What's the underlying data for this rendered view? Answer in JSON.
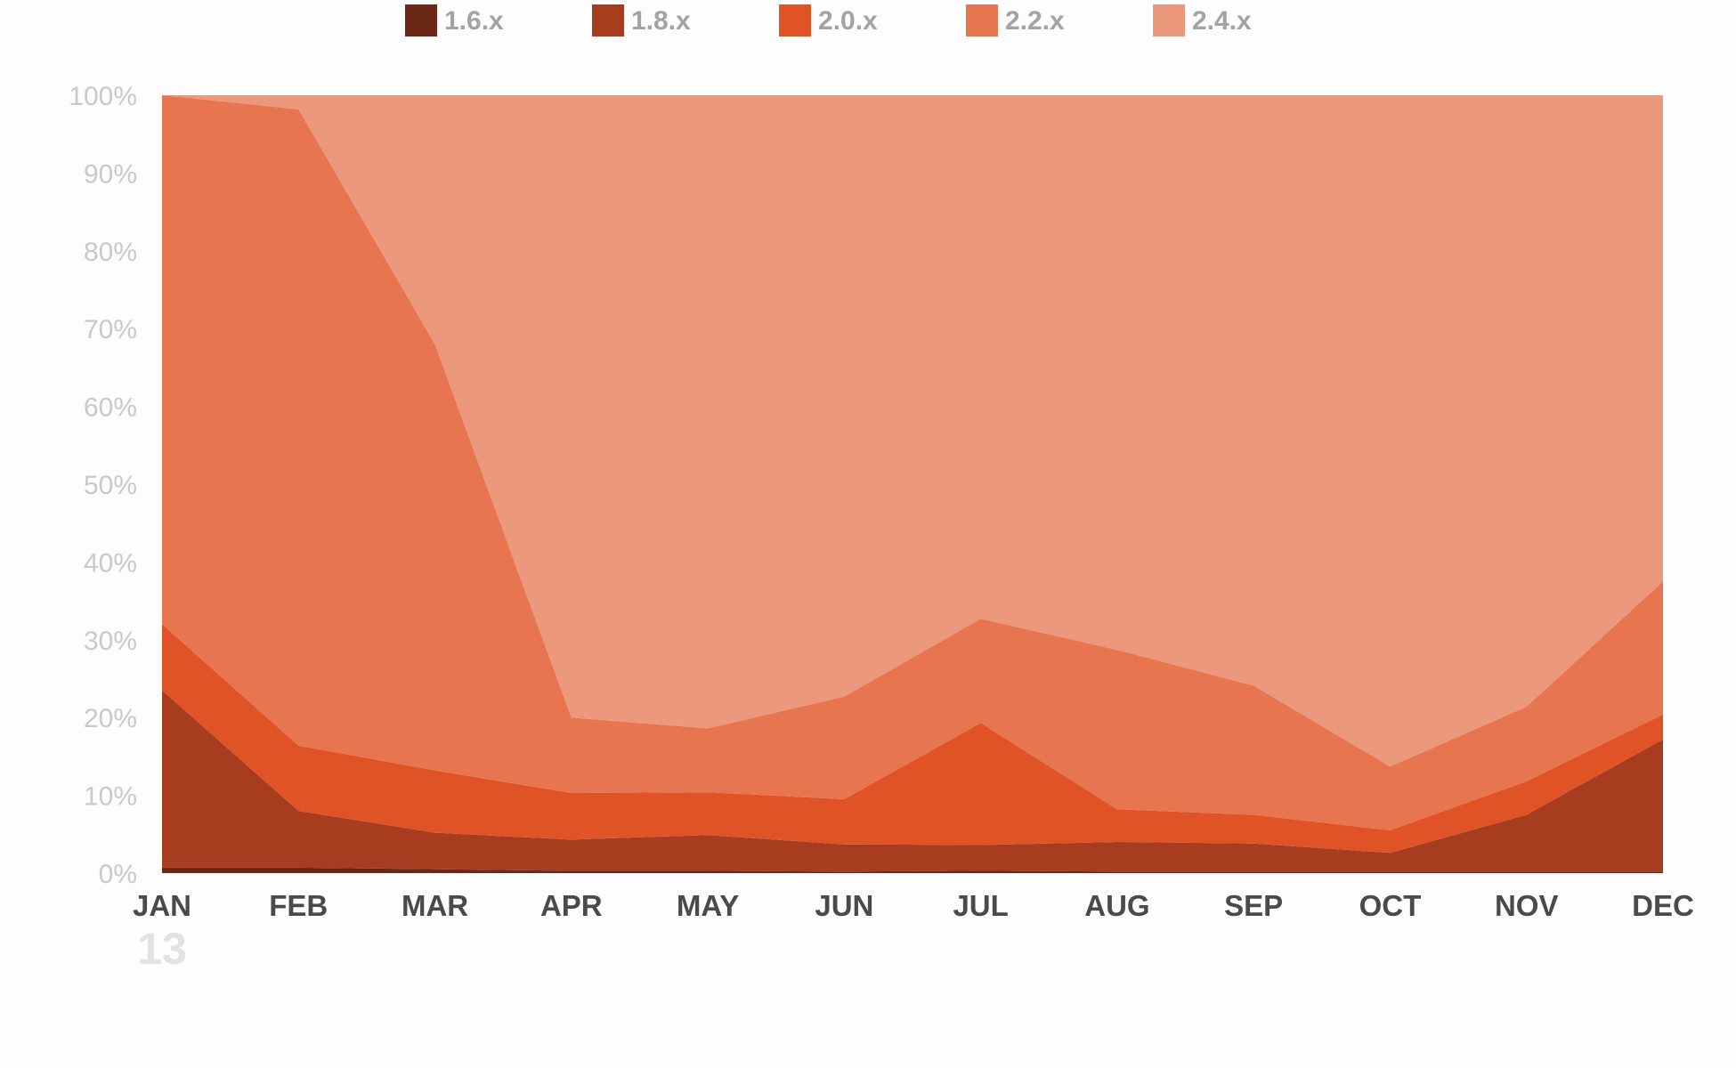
{
  "chart_data": {
    "type": "area",
    "stacked": true,
    "percent": true,
    "categories": [
      "JAN",
      "FEB",
      "MAR",
      "APR",
      "MAY",
      "JUN",
      "JUL",
      "AUG",
      "SEP",
      "OCT",
      "NOV",
      "DEC"
    ],
    "year_label": "13",
    "ylim": [
      0,
      100
    ],
    "y_ticks": [
      "0%",
      "10%",
      "20%",
      "30%",
      "40%",
      "50%",
      "60%",
      "70%",
      "80%",
      "90%",
      "100%"
    ],
    "grid": false,
    "legend_position": "top",
    "series": [
      {
        "name": "1.6.x",
        "color": "#6b2817",
        "values": [
          0.7,
          0.7,
          0.5,
          0.3,
          0.3,
          0.2,
          0.3,
          0.2,
          0.2,
          0.2,
          0.2,
          0.2
        ]
      },
      {
        "name": "1.8.x",
        "color": "#a83c1e",
        "values": [
          22.8,
          7.3,
          4.7,
          4.0,
          4.6,
          3.5,
          3.3,
          3.8,
          3.6,
          2.4,
          7.3,
          17.0
        ]
      },
      {
        "name": "2.0.x",
        "color": "#e05326",
        "values": [
          8.5,
          8.4,
          8.0,
          6.0,
          5.5,
          5.8,
          15.7,
          4.2,
          3.7,
          2.9,
          4.3,
          3.2
        ]
      },
      {
        "name": "2.2.x",
        "color": "#e77550",
        "values": [
          68.0,
          81.8,
          54.8,
          9.7,
          8.2,
          13.2,
          13.4,
          20.5,
          16.6,
          8.2,
          9.6,
          17.1
        ]
      },
      {
        "name": "2.4.x",
        "color": "#ec987d",
        "values": [
          0.0,
          1.8,
          32.0,
          80.0,
          81.4,
          77.3,
          67.3,
          71.3,
          75.9,
          86.3,
          78.6,
          62.5
        ]
      }
    ]
  }
}
